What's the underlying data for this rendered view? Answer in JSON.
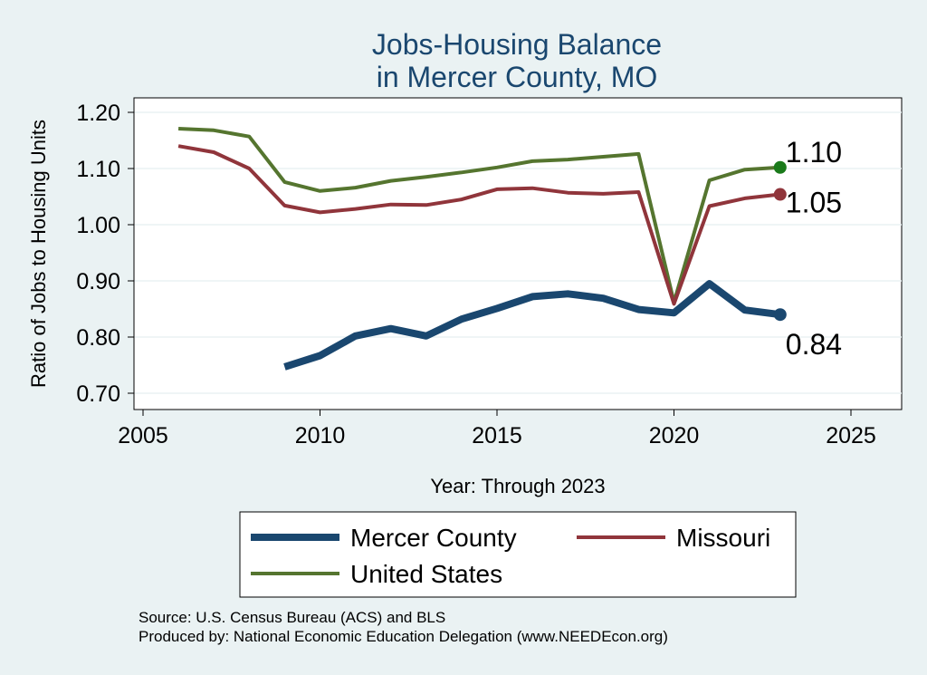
{
  "chart_data": {
    "type": "line",
    "title": [
      "Jobs-Housing Balance",
      "in Mercer County, MO"
    ],
    "xlabel": "Year: Through 2023",
    "ylabel": "Ratio of Jobs to Housing Units",
    "xlim": [
      2005,
      2025
    ],
    "ylim": [
      0.7,
      1.2
    ],
    "x_ticks": [
      "2005",
      "2010",
      "2015",
      "2020",
      "2025"
    ],
    "y_ticks": [
      "0.70",
      "0.80",
      "0.90",
      "1.00",
      "1.10",
      "1.20"
    ],
    "grid": true,
    "legend_position": "bottom",
    "series": [
      {
        "name": "Mercer County",
        "color": "#1a476f",
        "x": [
          2009,
          2010,
          2011,
          2012,
          2013,
          2014,
          2015,
          2016,
          2017,
          2018,
          2019,
          2020,
          2021,
          2022,
          2023
        ],
        "values": [
          0.747,
          0.767,
          0.802,
          0.815,
          0.802,
          0.832,
          0.851,
          0.872,
          0.877,
          0.869,
          0.849,
          0.843,
          0.895,
          0.848,
          0.84
        ],
        "end_label": "0.84"
      },
      {
        "name": "Missouri",
        "color": "#90353b",
        "x": [
          2006,
          2007,
          2008,
          2009,
          2010,
          2011,
          2012,
          2013,
          2014,
          2015,
          2016,
          2017,
          2018,
          2019,
          2020,
          2021,
          2022,
          2023
        ],
        "values": [
          1.14,
          1.129,
          1.1,
          1.034,
          1.022,
          1.028,
          1.036,
          1.035,
          1.045,
          1.063,
          1.065,
          1.057,
          1.055,
          1.058,
          0.859,
          1.033,
          1.047,
          1.054
        ],
        "end_label": "1.05"
      },
      {
        "name": "United States",
        "color": "#55752f",
        "x": [
          2006,
          2007,
          2008,
          2009,
          2010,
          2011,
          2012,
          2013,
          2014,
          2015,
          2016,
          2017,
          2018,
          2019,
          2020,
          2021,
          2022,
          2023
        ],
        "values": [
          1.171,
          1.168,
          1.157,
          1.076,
          1.06,
          1.066,
          1.078,
          1.085,
          1.093,
          1.102,
          1.113,
          1.116,
          1.121,
          1.126,
          0.862,
          1.079,
          1.098,
          1.102
        ],
        "end_label": "1.10"
      }
    ],
    "end_markers": {
      "Mercer County": "#1a476f",
      "Missouri": "#90353b",
      "United States": "#1a7a1a"
    }
  },
  "notes": {
    "source": "Source: U.S. Census Bureau (ACS) and BLS",
    "produced_by": "Produced by: National Economic Education Delegation (www.NEEDEcon.org)"
  }
}
